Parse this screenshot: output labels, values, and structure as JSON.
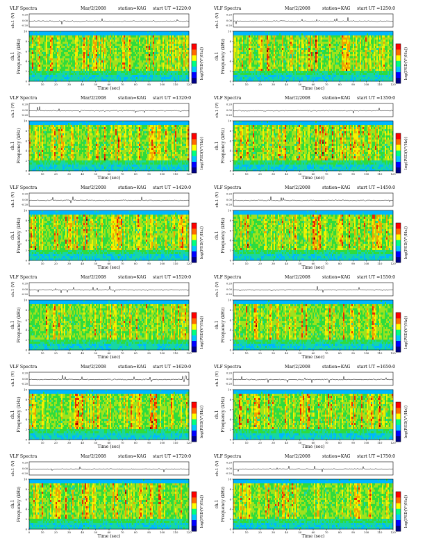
{
  "colors": {
    "spectrogram": [
      "#00b7ff",
      "#17d6a3",
      "#2fdc3c",
      "#9fe21d",
      "#f3f000",
      "#f0a200",
      "#ea2a00",
      "#8a0000"
    ],
    "colorbar": [
      "#000088",
      "#0000ff",
      "#00c8ff",
      "#00ff80",
      "#ffff00",
      "#ff6a00",
      "#ff0000"
    ]
  },
  "chart_data": [
    {
      "type": "heatmap",
      "title_left": "VLF Spectra",
      "date": "Mar/2/2008",
      "station": "station=KAG",
      "start": "start UT =1220:0",
      "waveform_label": "ch.1 (V)",
      "waveform_ticks": [
        "0.20",
        "0.00",
        "-0.20"
      ],
      "channel_label": "ch.1",
      "ylabel": "Frequency (kHz)",
      "yticks": [
        "0",
        "2",
        "4",
        "6",
        "8",
        "10"
      ],
      "colorbar_label": "log(PSD(V²/Hz))",
      "xlabel": "Time (sec)",
      "xticks": [
        "0",
        "10",
        "20",
        "30",
        "40",
        "50",
        "60",
        "70",
        "80",
        "90",
        "100",
        "110",
        "120"
      ],
      "xlim": [
        0,
        120
      ],
      "ylim": [
        0,
        10
      ]
    },
    {
      "type": "heatmap",
      "title_left": "VLF Spectra",
      "date": "Mar/2/2008",
      "station": "station=KAG",
      "start": "start UT =1250:0",
      "waveform_label": "ch.1 (V)",
      "waveform_ticks": [
        "0.20",
        "0.00",
        "-0.20"
      ],
      "channel_label": "ch.1",
      "ylabel": "Frequency (kHz)",
      "yticks": [
        "0",
        "2",
        "4",
        "6",
        "8",
        "10"
      ],
      "colorbar_label": "log(PSD(V²/Hz))",
      "xlabel": "Time (sec)",
      "xticks": [
        "0",
        "10",
        "20",
        "30",
        "40",
        "50",
        "60",
        "70",
        "80",
        "90",
        "100",
        "110",
        "120"
      ],
      "xlim": [
        0,
        120
      ],
      "ylim": [
        0,
        10
      ]
    },
    {
      "type": "heatmap",
      "title_left": "VLF Spectra",
      "date": "Mar/2/2008",
      "station": "station=KAG",
      "start": "start UT =1320:0",
      "waveform_label": "ch.1 (V)",
      "waveform_ticks": [
        "0.20",
        "0.00",
        "-0.20"
      ],
      "channel_label": "ch.1",
      "ylabel": "Frequency (kHz)",
      "yticks": [
        "0",
        "2",
        "4",
        "6",
        "8",
        "10"
      ],
      "colorbar_label": "log(PSD(V²/Hz))",
      "xlabel": "Time (sec)",
      "xticks": [
        "0",
        "10",
        "20",
        "30",
        "40",
        "50",
        "60",
        "70",
        "80",
        "90",
        "100",
        "110",
        "120"
      ],
      "xlim": [
        0,
        120
      ],
      "ylim": [
        0,
        10
      ]
    },
    {
      "type": "heatmap",
      "title_left": "VLF Spectra",
      "date": "Mar/2/2008",
      "station": "station=KAG",
      "start": "start UT =1350:0",
      "waveform_label": "ch.1 (V)",
      "waveform_ticks": [
        "0.20",
        "0.00",
        "-0.20"
      ],
      "channel_label": "ch.1",
      "ylabel": "Frequency (kHz)",
      "yticks": [
        "0",
        "2",
        "4",
        "6",
        "8",
        "10"
      ],
      "colorbar_label": "log(PSD(V²/Hz))",
      "xlabel": "Time (sec)",
      "xticks": [
        "0",
        "10",
        "20",
        "30",
        "40",
        "50",
        "60",
        "70",
        "80",
        "90",
        "100",
        "110",
        "120"
      ],
      "xlim": [
        0,
        120
      ],
      "ylim": [
        0,
        10
      ]
    },
    {
      "type": "heatmap",
      "title_left": "VLF Spectra",
      "date": "Mar/2/2008",
      "station": "station=KAG",
      "start": "start UT =1420:0",
      "waveform_label": "ch.1 (V)",
      "waveform_ticks": [
        "0.20",
        "0.00",
        "-0.20"
      ],
      "channel_label": "ch.1",
      "ylabel": "Frequency (kHz)",
      "yticks": [
        "0",
        "2",
        "4",
        "6",
        "8",
        "10"
      ],
      "colorbar_label": "log(PSD(V²/Hz))",
      "xlabel": "Time (sec)",
      "xticks": [
        "0",
        "10",
        "20",
        "30",
        "40",
        "50",
        "60",
        "70",
        "80",
        "90",
        "100",
        "110",
        "120"
      ],
      "xlim": [
        0,
        120
      ],
      "ylim": [
        0,
        10
      ]
    },
    {
      "type": "heatmap",
      "title_left": "VLF Spectra",
      "date": "Mar/2/2008",
      "station": "station=KAG",
      "start": "start UT =1450:0",
      "waveform_label": "ch.1 (V)",
      "waveform_ticks": [
        "0.20",
        "0.00",
        "-0.20"
      ],
      "channel_label": "ch.1",
      "ylabel": "Frequency (kHz)",
      "yticks": [
        "0",
        "2",
        "4",
        "6",
        "8",
        "10"
      ],
      "colorbar_label": "log(PSD(V²/Hz))",
      "xlabel": "Time (sec)",
      "xticks": [
        "0",
        "10",
        "20",
        "30",
        "40",
        "50",
        "60",
        "70",
        "80",
        "90",
        "100",
        "110",
        "120"
      ],
      "xlim": [
        0,
        120
      ],
      "ylim": [
        0,
        10
      ]
    },
    {
      "type": "heatmap",
      "title_left": "VLF Spectra",
      "date": "Mar/2/2008",
      "station": "station=KAG",
      "start": "start UT =1520:0",
      "waveform_label": "ch.1 (V)",
      "waveform_ticks": [
        "0.20",
        "0.00",
        "-0.20"
      ],
      "channel_label": "ch.1",
      "ylabel": "Frequency (kHz)",
      "yticks": [
        "0",
        "2",
        "4",
        "6",
        "8",
        "10"
      ],
      "colorbar_label": "log(PSD(V²/Hz))",
      "xlabel": "Time (sec)",
      "xticks": [
        "0",
        "10",
        "20",
        "30",
        "40",
        "50",
        "60",
        "70",
        "80",
        "90",
        "100",
        "110",
        "120"
      ],
      "xlim": [
        0,
        120
      ],
      "ylim": [
        0,
        10
      ]
    },
    {
      "type": "heatmap",
      "title_left": "VLF Spectra",
      "date": "Mar/2/2008",
      "station": "station=KAG",
      "start": "start UT =1550:0",
      "waveform_label": "ch.1 (V)",
      "waveform_ticks": [
        "0.20",
        "0.00",
        "-0.20"
      ],
      "channel_label": "ch.1",
      "ylabel": "Frequency (kHz)",
      "yticks": [
        "0",
        "2",
        "4",
        "6",
        "8",
        "10"
      ],
      "colorbar_label": "log(PSD(V²/Hz))",
      "xlabel": "Time (sec)",
      "xticks": [
        "0",
        "10",
        "20",
        "30",
        "40",
        "50",
        "60",
        "70",
        "80",
        "90",
        "100",
        "110",
        "120"
      ],
      "xlim": [
        0,
        120
      ],
      "ylim": [
        0,
        10
      ]
    },
    {
      "type": "heatmap",
      "title_left": "VLF Spectra",
      "date": "Mar/2/2008",
      "station": "station=KAG",
      "start": "start UT =1620:0",
      "waveform_label": "ch.1 (V)",
      "waveform_ticks": [
        "0.20",
        "0.00",
        "-0.20"
      ],
      "channel_label": "ch.1",
      "ylabel": "Frequency (kHz)",
      "yticks": [
        "0",
        "2",
        "4",
        "6",
        "8",
        "10"
      ],
      "colorbar_label": "log(PSD(V²/Hz))",
      "xlabel": "Time (sec)",
      "xticks": [
        "0",
        "10",
        "20",
        "30",
        "40",
        "50",
        "60",
        "70",
        "80",
        "90",
        "100",
        "110",
        "120"
      ],
      "xlim": [
        0,
        120
      ],
      "ylim": [
        0,
        10
      ]
    },
    {
      "type": "heatmap",
      "title_left": "VLF Spectra",
      "date": "Mar/2/2008",
      "station": "station=KAG",
      "start": "start UT =1650:0",
      "waveform_label": "ch.1 (V)",
      "waveform_ticks": [
        "0.20",
        "0.00",
        "-0.20"
      ],
      "channel_label": "ch.1",
      "ylabel": "Frequency (kHz)",
      "yticks": [
        "0",
        "2",
        "4",
        "6",
        "8",
        "10"
      ],
      "colorbar_label": "log(PSD(V²/Hz))",
      "xlabel": "Time (sec)",
      "xticks": [
        "0",
        "10",
        "20",
        "30",
        "40",
        "50",
        "60",
        "70",
        "80",
        "90",
        "100",
        "110",
        "120"
      ],
      "xlim": [
        0,
        120
      ],
      "ylim": [
        0,
        10
      ]
    },
    {
      "type": "heatmap",
      "title_left": "VLF Spectra",
      "date": "Mar/2/2008",
      "station": "station=KAG",
      "start": "start UT =1720:0",
      "waveform_label": "ch.1 (V)",
      "waveform_ticks": [
        "0.20",
        "0.00",
        "-0.20"
      ],
      "channel_label": "ch.1",
      "ylabel": "Frequency (kHz)",
      "yticks": [
        "0",
        "2",
        "4",
        "6",
        "8",
        "10"
      ],
      "colorbar_label": "log(PSD(V²/Hz))",
      "xlabel": "Time (sec)",
      "xticks": [
        "0",
        "10",
        "20",
        "30",
        "40",
        "50",
        "60",
        "70",
        "80",
        "90",
        "100",
        "110",
        "120"
      ],
      "xlim": [
        0,
        120
      ],
      "ylim": [
        0,
        10
      ]
    },
    {
      "type": "heatmap",
      "title_left": "VLF Spectra",
      "date": "Mar/2/2008",
      "station": "station=KAG",
      "start": "start UT =1750:0",
      "waveform_label": "ch.1 (V)",
      "waveform_ticks": [
        "0.20",
        "0.00",
        "-0.20"
      ],
      "channel_label": "ch.1",
      "ylabel": "Frequency (kHz)",
      "yticks": [
        "0",
        "2",
        "4",
        "6",
        "8",
        "10"
      ],
      "colorbar_label": "log(PSD(V²/Hz))",
      "xlabel": "Time (sec)",
      "xticks": [
        "0",
        "10",
        "20",
        "30",
        "40",
        "50",
        "60",
        "70",
        "80",
        "90",
        "100",
        "110",
        "120"
      ],
      "xlim": [
        0,
        120
      ],
      "ylim": [
        0,
        10
      ]
    }
  ]
}
